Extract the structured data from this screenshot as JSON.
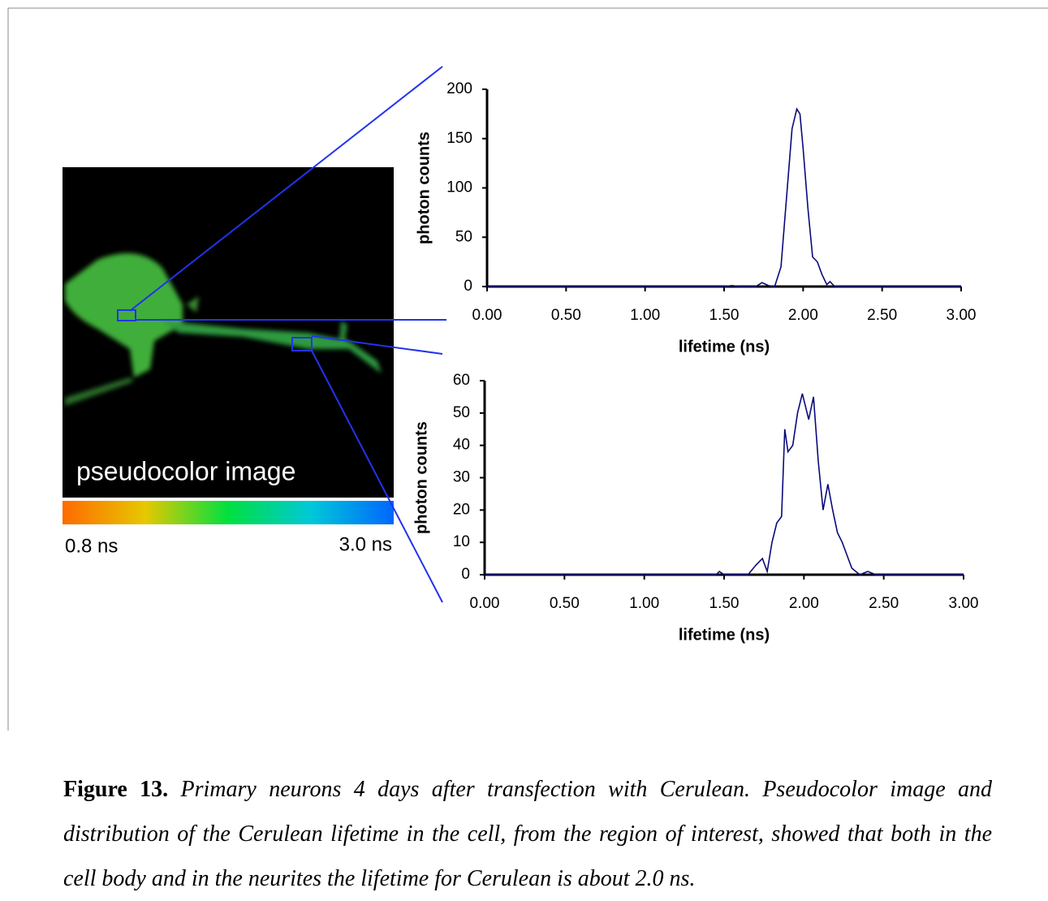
{
  "image": {
    "label": "pseudocolor image",
    "scale_min": "0.8 ns",
    "scale_max": "3.0 ns"
  },
  "chart_data": [
    {
      "type": "line",
      "ylabel": "photon counts",
      "xlabel": "lifetime (ns)",
      "color": "#0a0a7a",
      "x": [
        0,
        1.5,
        1.55,
        1.6,
        1.7,
        1.74,
        1.78,
        1.82,
        1.86,
        1.9,
        1.93,
        1.96,
        1.98,
        2.0,
        2.03,
        2.06,
        2.09,
        2.12,
        2.15,
        2.17,
        2.2,
        3.0
      ],
      "values": [
        0,
        0,
        1,
        0,
        0,
        4,
        1,
        0,
        20,
        100,
        160,
        180,
        175,
        140,
        80,
        30,
        25,
        12,
        2,
        5,
        0,
        0
      ],
      "xlim": [
        0,
        3
      ],
      "ylim": [
        0,
        200
      ],
      "xticks": [
        {
          "value": 0,
          "label": "0.00"
        },
        {
          "value": 0.5,
          "label": "0.50"
        },
        {
          "value": 1,
          "label": "1.00"
        },
        {
          "value": 1.5,
          "label": "1.50"
        },
        {
          "value": 2,
          "label": "2.00"
        },
        {
          "value": 2.5,
          "label": "2.50"
        },
        {
          "value": 3,
          "label": "3.00"
        }
      ],
      "yticks": [
        0,
        50,
        100,
        150,
        200
      ]
    },
    {
      "type": "line",
      "ylabel": "photon counts",
      "xlabel": "lifetime (ns)",
      "color": "#0a0a7a",
      "x": [
        0,
        1.45,
        1.47,
        1.5,
        1.65,
        1.7,
        1.74,
        1.77,
        1.8,
        1.83,
        1.86,
        1.88,
        1.9,
        1.93,
        1.96,
        1.99,
        2.01,
        2.03,
        2.06,
        2.09,
        2.12,
        2.15,
        2.18,
        2.21,
        2.24,
        2.27,
        2.3,
        2.35,
        2.4,
        2.45,
        3.0
      ],
      "values": [
        0,
        0,
        1,
        0,
        0,
        3,
        5,
        1,
        10,
        16,
        18,
        45,
        38,
        40,
        50,
        56,
        52,
        48,
        55,
        35,
        20,
        28,
        20,
        13,
        10,
        6,
        2,
        0,
        1,
        0,
        0
      ],
      "xlim": [
        0,
        3
      ],
      "ylim": [
        0,
        60
      ],
      "xticks": [
        {
          "value": 0,
          "label": "0.00"
        },
        {
          "value": 0.5,
          "label": "0.50"
        },
        {
          "value": 1,
          "label": "1.00"
        },
        {
          "value": 1.5,
          "label": "1.50"
        },
        {
          "value": 2,
          "label": "2.00"
        },
        {
          "value": 2.5,
          "label": "2.50"
        },
        {
          "value": 3,
          "label": "3.00"
        }
      ],
      "yticks": [
        0,
        10,
        20,
        30,
        40,
        50,
        60
      ]
    }
  ],
  "caption": {
    "label": "Figure 13.",
    "text": "Primary neurons 4 days after transfection with Cerulean. Pseudocolor image and distribution of the Cerulean lifetime in the cell, from the region of interest, showed that both in the cell body and in the neurites the lifetime for Cerulean is about 2.0 ns."
  }
}
